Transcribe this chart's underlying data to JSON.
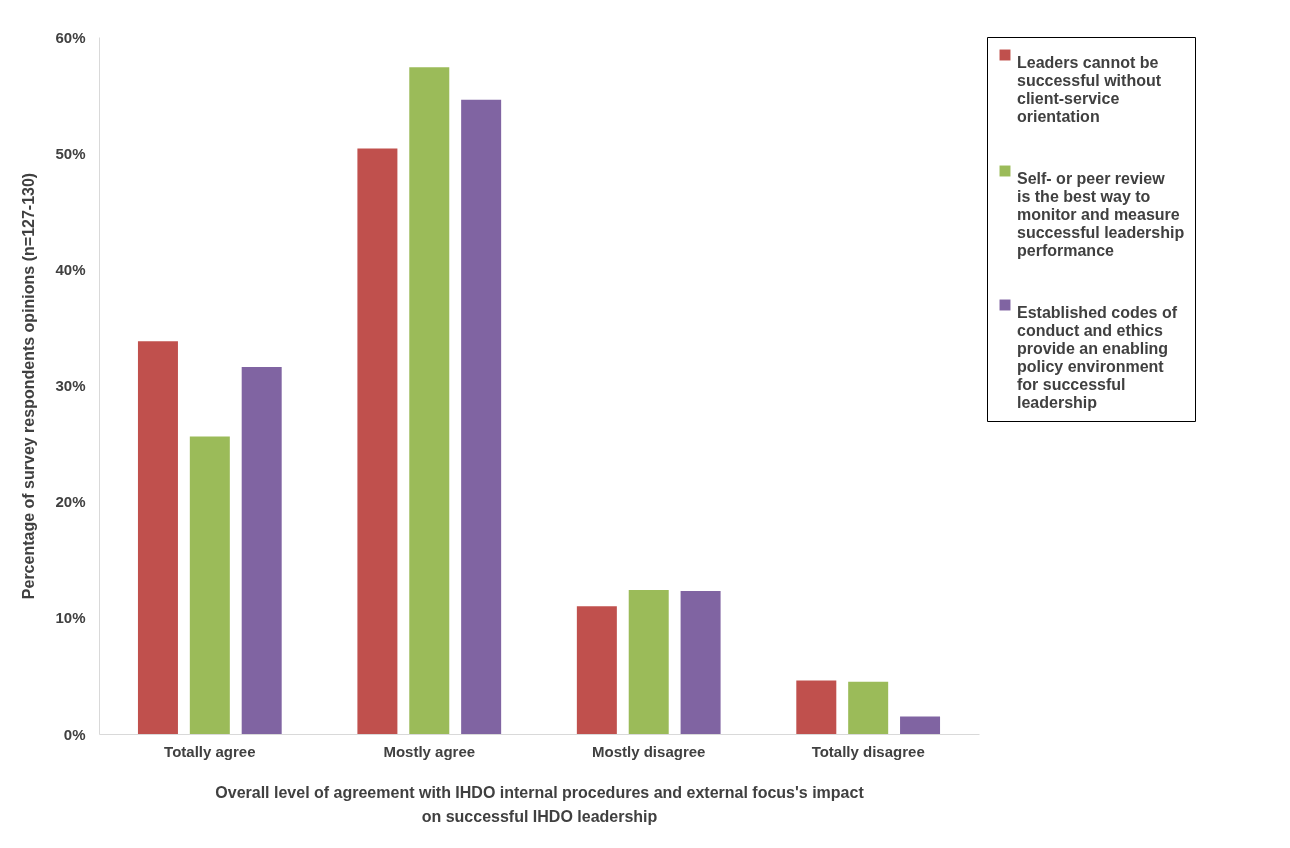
{
  "chart_data": {
    "type": "bar",
    "xlabel": "Overall level of agreement with IHDO internal procedures and external focus's impact on successful IHDO leadership",
    "ylabel": "Percentage of survey respondents opinions (n=127-130)",
    "categories": [
      "Totally agree",
      "Mostly agree",
      "Mostly disagree",
      "Totally disagree"
    ],
    "series": [
      {
        "name": "Leaders cannot be successful without client-service orientation",
        "color": "#c0504d",
        "values": [
          33.8,
          50.4,
          11.0,
          4.6
        ]
      },
      {
        "name": "Self- or peer review is the best way to monitor and measure successful leadership performance",
        "color": "#9bbb59",
        "values": [
          25.6,
          57.4,
          12.4,
          4.5
        ]
      },
      {
        "name": "Established codes of conduct and ethics provide an enabling policy environment for successful leadership",
        "color": "#8064a2",
        "values": [
          31.6,
          54.6,
          12.3,
          1.5
        ]
      }
    ],
    "ylim": [
      0,
      60
    ],
    "yticks": [
      {
        "value": 0,
        "label": "0%"
      },
      {
        "value": 10,
        "label": "10%"
      },
      {
        "value": 20,
        "label": "20%"
      },
      {
        "value": 30,
        "label": "30%"
      },
      {
        "value": 40,
        "label": "40%"
      },
      {
        "value": 50,
        "label": "50%"
      },
      {
        "value": 60,
        "label": "60%"
      }
    ],
    "grid": false,
    "legend": "right"
  }
}
